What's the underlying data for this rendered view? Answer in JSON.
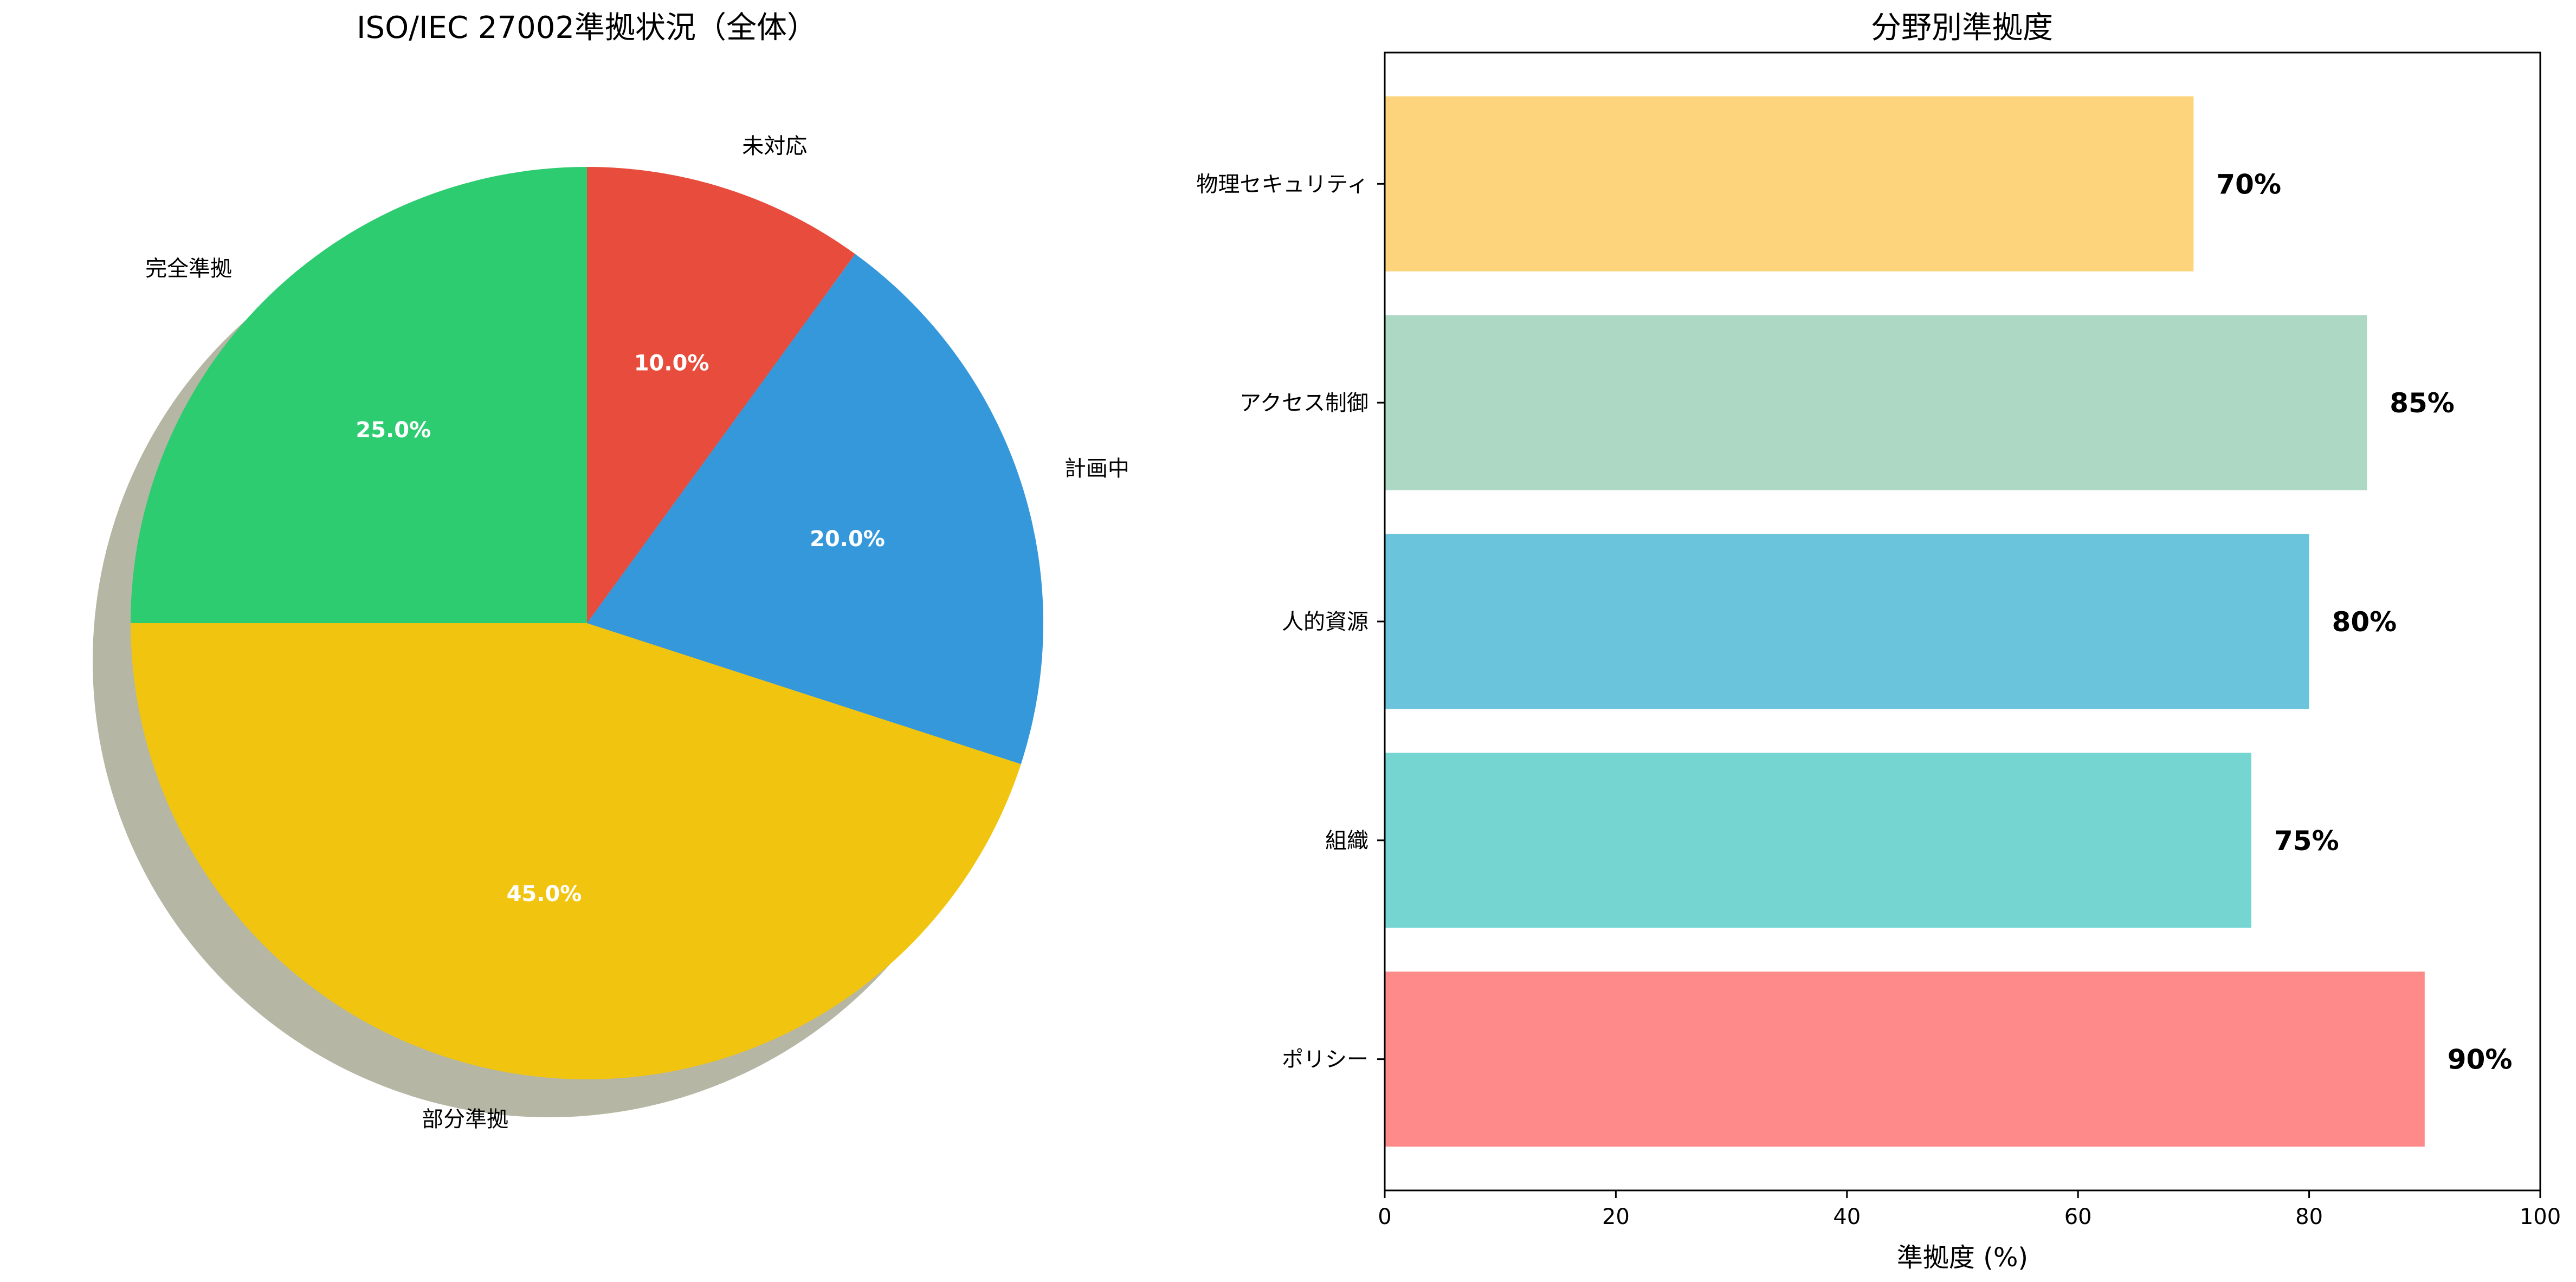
{
  "chart_data": [
    {
      "type": "pie",
      "title": "ISO/IEC 27002準拠状況（全体）",
      "start_angle_deg": 90,
      "direction": "counterclockwise",
      "shadow": true,
      "slices": [
        {
          "label": "完全準拠",
          "value": 25.0,
          "pct_text": "25.0%",
          "color": "#2ecc71"
        },
        {
          "label": "部分準拠",
          "value": 45.0,
          "pct_text": "45.0%",
          "color": "#f1c40f"
        },
        {
          "label": "計画中",
          "value": 20.0,
          "pct_text": "20.0%",
          "color": "#3498db"
        },
        {
          "label": "未対応",
          "value": 10.0,
          "pct_text": "10.0%",
          "color": "#e74c3c"
        }
      ]
    },
    {
      "type": "bar",
      "orientation": "horizontal",
      "title": "分野別準拠度",
      "xlabel": "準拠度 (%)",
      "ylabel": "",
      "xlim": [
        0,
        100
      ],
      "xticks": [
        0,
        20,
        40,
        60,
        80,
        100
      ],
      "grid": false,
      "categories": [
        "ポリシー",
        "組織",
        "人的資源",
        "アクセス制御",
        "物理セキュリティ"
      ],
      "values": [
        90,
        75,
        80,
        85,
        70
      ],
      "value_labels": [
        "90%",
        "75%",
        "80%",
        "85%",
        "70%"
      ],
      "colors": [
        "#ff8a8a",
        "#75d6d1",
        "#6ac4db",
        "#add8c4",
        "#fdd47c"
      ]
    }
  ]
}
